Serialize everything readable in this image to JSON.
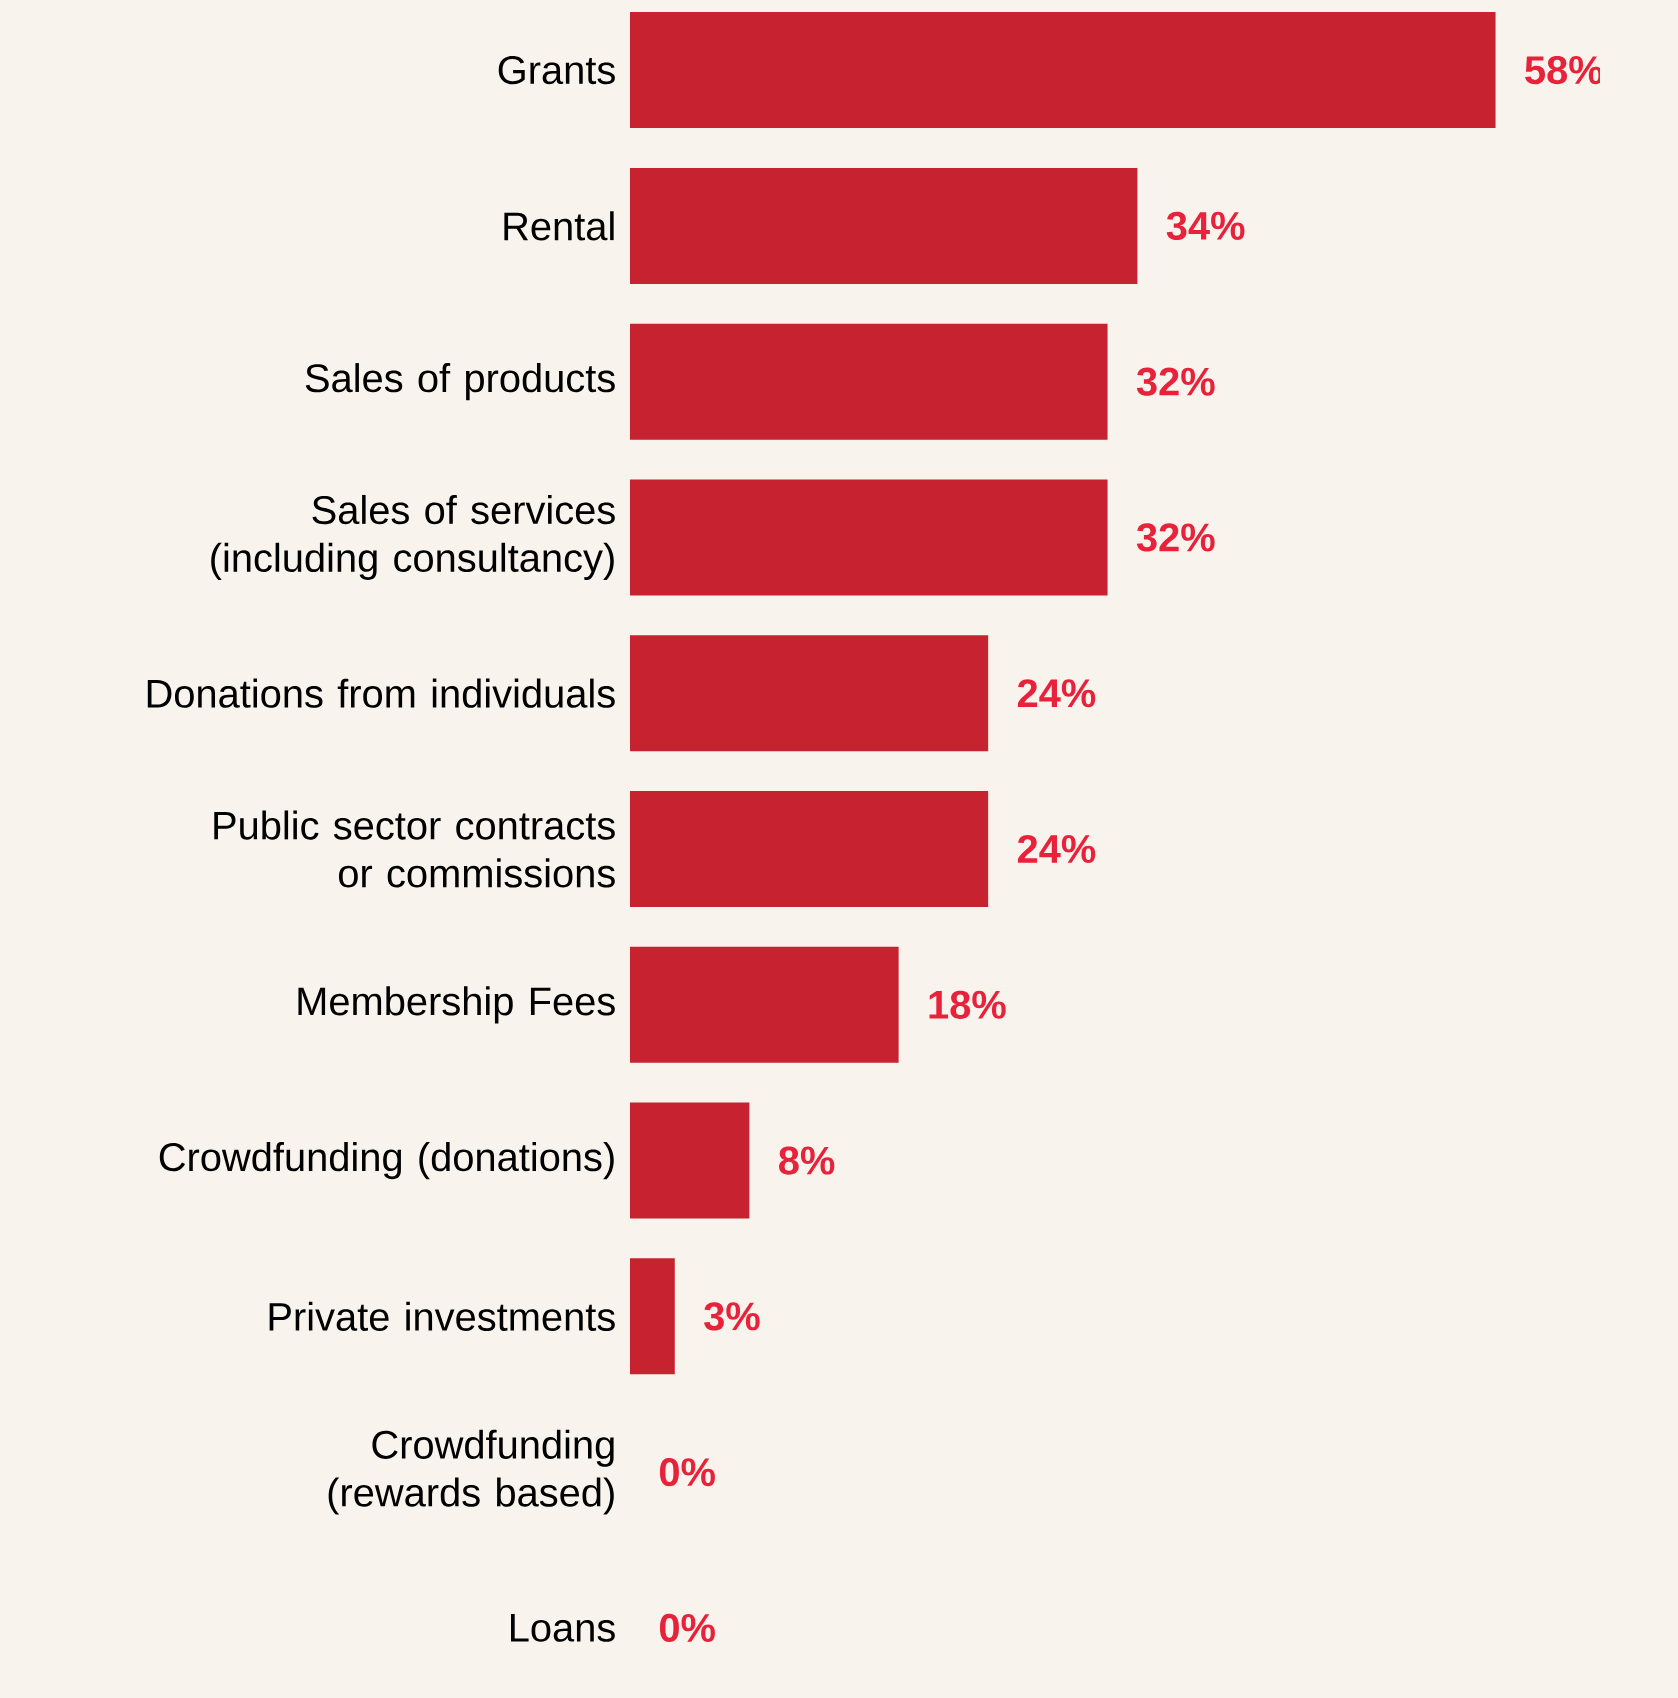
{
  "chart_data": {
    "type": "bar",
    "orientation": "horizontal",
    "categories": [
      "Grants",
      "Rental",
      "Sales of products",
      "Sales of services (including consultancy)",
      "Donations from individuals",
      "Public sector contracts or commissions",
      "Membership Fees",
      "Crowdfunding (donations)",
      "Private investments",
      "Crowdfunding (rewards based)",
      "Loans"
    ],
    "values": [
      58,
      34,
      32,
      32,
      24,
      24,
      18,
      8,
      3,
      0,
      0
    ],
    "value_labels": [
      "58%",
      "34%",
      "32%",
      "32%",
      "24%",
      "24%",
      "18%",
      "8%",
      "3%",
      "0%",
      "0%"
    ],
    "color": "#c62230"
  }
}
